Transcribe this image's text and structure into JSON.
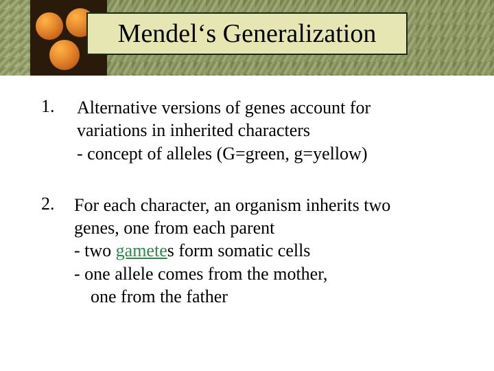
{
  "title": "Mendel‘s Generalization",
  "title_style": {
    "background": "#e6e6b3",
    "border_color": "#1a2a1a",
    "font_size_pt": 38,
    "text_color": "#000000"
  },
  "background_strip": {
    "left_texture": "green-peas",
    "left_colors": [
      "#9aa56e",
      "#7a8454",
      "#a6b07a"
    ],
    "orange_panel": {
      "background": "#2a1a0a",
      "circles": 3,
      "circle_colors": [
        "#ffb347",
        "#e68a2e",
        "#cc6a1a"
      ]
    },
    "right_texture": "green-peas",
    "right_colors": [
      "#8a9466",
      "#6f7a4e",
      "#9aa56e"
    ]
  },
  "body_style": {
    "font_family": "Times New Roman",
    "font_size_pt": 26,
    "text_color": "#000000",
    "link_color": "#2a8a4a",
    "page_background": "#ffffff"
  },
  "items": [
    {
      "number": "1.",
      "lines": [
        "Alternative versions of genes account for",
        "variations in inherited characters"
      ],
      "sublines": [
        "- concept of alleles (G=green, g=yellow)"
      ]
    },
    {
      "number": "2.",
      "lines": [
        "For each character, an organism inherits two",
        "genes, one from each parent"
      ],
      "sublines_rich": [
        {
          "prefix": "- two ",
          "link": "gamete",
          "suffix": "s form somatic cells"
        },
        {
          "text": "- one allele comes from the mother,"
        },
        {
          "indent": true,
          "text": "one from the father"
        }
      ]
    }
  ]
}
